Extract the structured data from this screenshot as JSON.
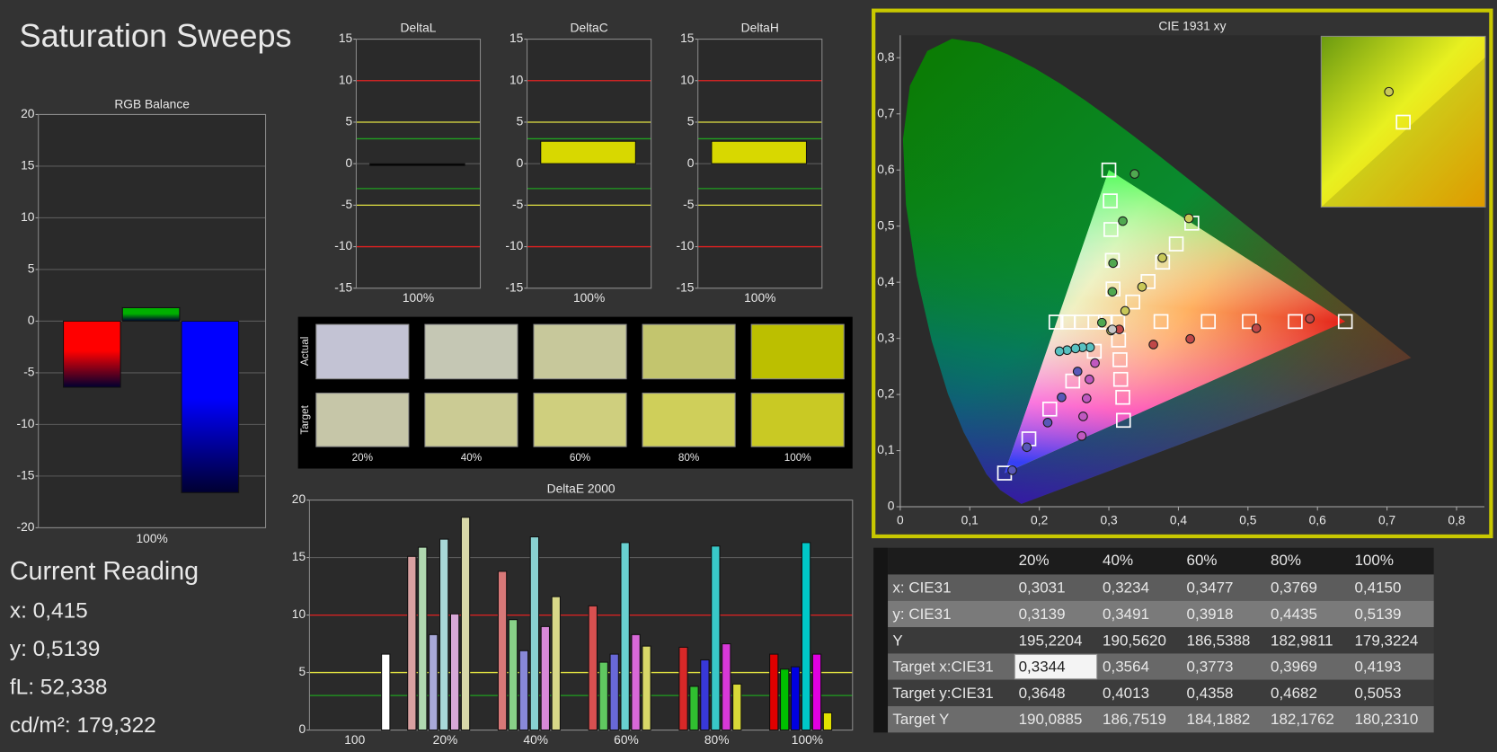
{
  "title": "Saturation Sweeps",
  "chart_data": [
    {
      "type": "bar",
      "title": "RGB Balance",
      "categories": [
        "100%"
      ],
      "series": [
        {
          "color": "#ff0000",
          "values": [
            -6.4
          ]
        },
        {
          "color": "#00b000",
          "values": [
            1.3
          ]
        },
        {
          "color": "#0000ff",
          "values": [
            -16.6
          ]
        }
      ],
      "ylim": [
        -20,
        20
      ],
      "yticks": [
        -20,
        -15,
        -10,
        -5,
        0,
        5,
        10,
        15,
        20
      ],
      "grid": true
    },
    {
      "type": "bar",
      "title": "DeltaL",
      "categories": [
        "100%"
      ],
      "series": [
        {
          "color": "#000000",
          "values": [
            0
          ]
        }
      ],
      "ylim": [
        -15,
        15
      ],
      "yticks": [
        -15,
        -10,
        -5,
        0,
        5,
        10,
        15
      ],
      "grid": true,
      "reference_lines": [
        {
          "value": 10,
          "color": "#e02020"
        },
        {
          "value": -10,
          "color": "#e02020"
        },
        {
          "value": 5,
          "color": "#e0e040"
        },
        {
          "value": -5,
          "color": "#e0e040"
        },
        {
          "value": 3,
          "color": "#20a020"
        },
        {
          "value": -3,
          "color": "#20a020"
        }
      ]
    },
    {
      "type": "bar",
      "title": "DeltaC",
      "categories": [
        "100%"
      ],
      "series": [
        {
          "color": "#d8d800",
          "values": [
            2.7
          ]
        }
      ],
      "ylim": [
        -15,
        15
      ],
      "yticks": [
        -15,
        -10,
        -5,
        0,
        5,
        10,
        15
      ],
      "grid": true,
      "reference_lines": [
        {
          "value": 10,
          "color": "#e02020"
        },
        {
          "value": -10,
          "color": "#e02020"
        },
        {
          "value": 5,
          "color": "#e0e040"
        },
        {
          "value": -5,
          "color": "#e0e040"
        },
        {
          "value": 3,
          "color": "#20a020"
        },
        {
          "value": -3,
          "color": "#20a020"
        }
      ]
    },
    {
      "type": "bar",
      "title": "DeltaH",
      "categories": [
        "100%"
      ],
      "series": [
        {
          "color": "#d8d800",
          "values": [
            2.7
          ]
        }
      ],
      "ylim": [
        -15,
        15
      ],
      "yticks": [
        -15,
        -10,
        -5,
        0,
        5,
        10,
        15
      ],
      "grid": true,
      "reference_lines": [
        {
          "value": 10,
          "color": "#e02020"
        },
        {
          "value": -10,
          "color": "#e02020"
        },
        {
          "value": 5,
          "color": "#e0e040"
        },
        {
          "value": -5,
          "color": "#e0e040"
        },
        {
          "value": 3,
          "color": "#20a020"
        },
        {
          "value": -3,
          "color": "#20a020"
        }
      ]
    },
    {
      "type": "bar",
      "title": "DeltaE 2000",
      "categories": [
        "100",
        "20%",
        "40%",
        "60%",
        "80%",
        "100%"
      ],
      "series": [
        {
          "colors": [
            null,
            "#d8a0a0",
            "#d87878",
            "#d85050",
            "#d82828",
            "#e00000"
          ],
          "values": [
            null,
            15.1,
            13.8,
            10.8,
            7.2,
            6.6
          ]
        },
        {
          "colors": [
            null,
            "#b0d8b0",
            "#88d088",
            "#60c860",
            "#30c030",
            "#00c000"
          ],
          "values": [
            null,
            15.9,
            9.6,
            5.9,
            3.8,
            5.3
          ]
        },
        {
          "colors": [
            null,
            "#a8a8d8",
            "#8888d8",
            "#6868d8",
            "#3838d8",
            "#0000e0"
          ],
          "values": [
            null,
            8.3,
            6.9,
            6.6,
            6.1,
            5.5
          ]
        },
        {
          "colors": [
            null,
            "#a8d8d8",
            "#88d0d0",
            "#68d0d0",
            "#38c8c8",
            "#00c8c8"
          ],
          "values": [
            null,
            16.6,
            16.8,
            16.3,
            16.0,
            16.3
          ]
        },
        {
          "colors": [
            null,
            "#d8a8d8",
            "#d888d8",
            "#d868d8",
            "#d838d8",
            "#e000e0"
          ],
          "values": [
            null,
            10.1,
            9.0,
            8.3,
            7.5,
            6.6
          ]
        },
        {
          "colors": [
            null,
            "#d8d8a8",
            "#d8d888",
            "#d8d868",
            "#d8d838",
            "#e0e000"
          ],
          "values": [
            null,
            18.5,
            11.6,
            7.3,
            4.0,
            1.5
          ]
        },
        {
          "colors": [
            "#ffffff",
            null,
            null,
            null,
            null,
            null
          ],
          "values": [
            6.6,
            null,
            null,
            null,
            null,
            null
          ]
        }
      ],
      "ylim": [
        0,
        20
      ],
      "yticks": [
        0,
        5,
        10,
        15,
        20
      ],
      "grid": true,
      "reference_lines": [
        {
          "value": 10,
          "color": "#e02020"
        },
        {
          "value": 5,
          "color": "#e0e040"
        },
        {
          "value": 3,
          "color": "#20a020"
        }
      ]
    },
    {
      "type": "scatter",
      "title": "CIE 1931 xy",
      "xlim": [
        0,
        0.84
      ],
      "ylim": [
        0,
        0.84
      ],
      "xticks": [
        0,
        {
          "value": 0.1,
          "label": "0,1"
        },
        {
          "value": 0.2,
          "label": "0,2"
        },
        {
          "value": 0.3,
          "label": "0,3"
        },
        {
          "value": 0.4,
          "label": "0,4"
        },
        {
          "value": 0.5,
          "label": "0,5"
        },
        {
          "value": 0.6,
          "label": "0,6"
        },
        {
          "value": 0.7,
          "label": "0,7"
        },
        {
          "value": 0.8,
          "label": "0,8"
        }
      ],
      "yticks": [
        0,
        {
          "value": 0.1,
          "label": "0,1"
        },
        {
          "value": 0.2,
          "label": "0,2"
        },
        {
          "value": 0.3,
          "label": "0,3"
        },
        {
          "value": 0.4,
          "label": "0,4"
        },
        {
          "value": 0.5,
          "label": "0,5"
        },
        {
          "value": 0.6,
          "label": "0,6"
        },
        {
          "value": 0.7,
          "label": "0,7"
        },
        {
          "value": 0.8,
          "label": "0,8"
        }
      ],
      "series": [
        {
          "marker": "square",
          "color": "#ffffff",
          "x": [
            0.3127,
            0.375,
            0.443,
            0.502,
            0.568,
            0.64,
            0.306,
            0.305,
            0.303,
            0.302,
            0.3,
            0.279,
            0.248,
            0.215,
            0.185,
            0.15,
            0.295,
            0.28,
            0.261,
            0.241,
            0.224,
            0.314,
            0.316,
            0.317,
            0.32,
            0.321,
            0.3344,
            0.3564,
            0.3773,
            0.3969,
            0.4193
          ],
          "y": [
            0.329,
            0.33,
            0.33,
            0.33,
            0.33,
            0.33,
            0.388,
            0.439,
            0.494,
            0.545,
            0.6,
            0.277,
            0.224,
            0.174,
            0.121,
            0.06,
            0.329,
            0.329,
            0.329,
            0.329,
            0.329,
            0.297,
            0.262,
            0.227,
            0.195,
            0.154,
            0.3648,
            0.4013,
            0.4358,
            0.4682,
            0.5053
          ]
        },
        {
          "marker": "circle",
          "color": "#c04848",
          "x": [
            0.315,
            0.364,
            0.417,
            0.512,
            0.589
          ],
          "y": [
            0.316,
            0.289,
            0.299,
            0.318,
            0.335
          ]
        },
        {
          "marker": "circle",
          "color": "#50a850",
          "x": [
            0.29,
            0.305,
            0.306,
            0.32,
            0.337
          ],
          "y": [
            0.328,
            0.383,
            0.434,
            0.509,
            0.593
          ]
        },
        {
          "marker": "circle",
          "color": "#5858b8",
          "x": [
            0.255,
            0.232,
            0.212,
            0.182,
            0.161
          ],
          "y": [
            0.241,
            0.195,
            0.15,
            0.106,
            0.065
          ]
        },
        {
          "marker": "circle",
          "color": "#58c0c0",
          "x": [
            0.273,
            0.262,
            0.252,
            0.24,
            0.229
          ],
          "y": [
            0.284,
            0.284,
            0.282,
            0.279,
            0.277
          ]
        },
        {
          "marker": "circle",
          "color": "#c058c0",
          "x": [
            0.28,
            0.272,
            0.268,
            0.263,
            0.261
          ],
          "y": [
            0.256,
            0.227,
            0.193,
            0.161,
            0.126
          ]
        },
        {
          "marker": "circle",
          "color": "#c8c858",
          "x": [
            0.3031,
            0.3234,
            0.3477,
            0.3769,
            0.415
          ],
          "y": [
            0.3139,
            0.3491,
            0.3918,
            0.4435,
            0.5139
          ]
        },
        {
          "marker": "circle",
          "color": "#c8c8c8",
          "x": [
            0.305
          ],
          "y": [
            0.316
          ]
        }
      ]
    }
  ],
  "swatches": {
    "row_labels": [
      "Actual",
      "Target"
    ],
    "columns": [
      "20%",
      "40%",
      "60%",
      "80%",
      "100%"
    ],
    "actual_colors": [
      "#c3c3d4",
      "#c5c7b4",
      "#c7c89b",
      "#c3c56e",
      "#bcbf00"
    ],
    "target_colors": [
      "#c6c6a8",
      "#cbcb94",
      "#cfcf7e",
      "#cfcf5a",
      "#c9c924"
    ]
  },
  "current_reading": {
    "title": "Current Reading",
    "lines": [
      "x: 0,415",
      "y: 0,5139",
      "fL: 52,338",
      "cd/m²: 179,322"
    ]
  },
  "table": {
    "header": [
      "20%",
      "40%",
      "60%",
      "80%",
      "100%"
    ],
    "rows": [
      [
        "x: CIE31",
        "0,3031",
        "0,3234",
        "0,3477",
        "0,3769",
        "0,4150"
      ],
      [
        "y: CIE31",
        "0,3139",
        "0,3491",
        "0,3918",
        "0,4435",
        "0,5139"
      ],
      [
        "Y",
        "195,2204",
        "190,5620",
        "186,5388",
        "182,9811",
        "179,3224"
      ],
      [
        "Target x:CIE31",
        "0,3344",
        "0,3564",
        "0,3773",
        "0,3969",
        "0,4193"
      ],
      [
        "Target y:CIE31",
        "0,3648",
        "0,4013",
        "0,4358",
        "0,4682",
        "0,5053"
      ],
      [
        "Target Y",
        "190,0885",
        "186,7519",
        "184,1882",
        "182,1762",
        "180,2310"
      ]
    ]
  }
}
